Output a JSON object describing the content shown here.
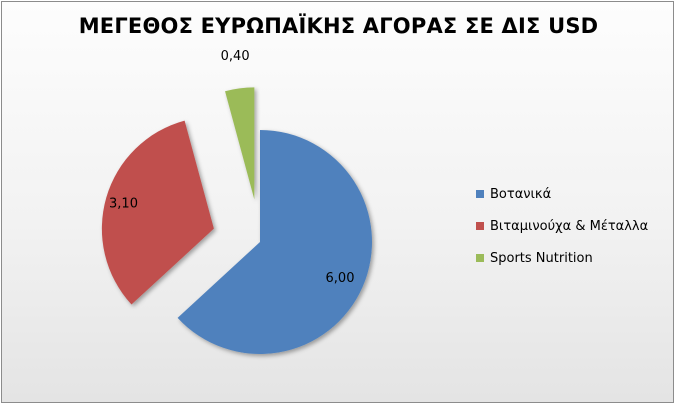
{
  "chart_data": {
    "type": "pie",
    "title": "ΜΕΓΕΘΟΣ ΕΥΡΩΠΑΪΚΗΣ ΑΓΟΡΑΣ ΣΕ ΔΙΣ USD",
    "categories": [
      "Βοτανικά",
      "Βιταμινούχα & Μέταλλα",
      "Sports Nutrition"
    ],
    "values": [
      6.0,
      3.1,
      0.4
    ],
    "value_labels": [
      "6,00",
      "3,10",
      "0,40"
    ],
    "colors": [
      "#4F81BD",
      "#C0504D",
      "#9BBB59"
    ],
    "exploded": true,
    "legend_position": "right"
  }
}
